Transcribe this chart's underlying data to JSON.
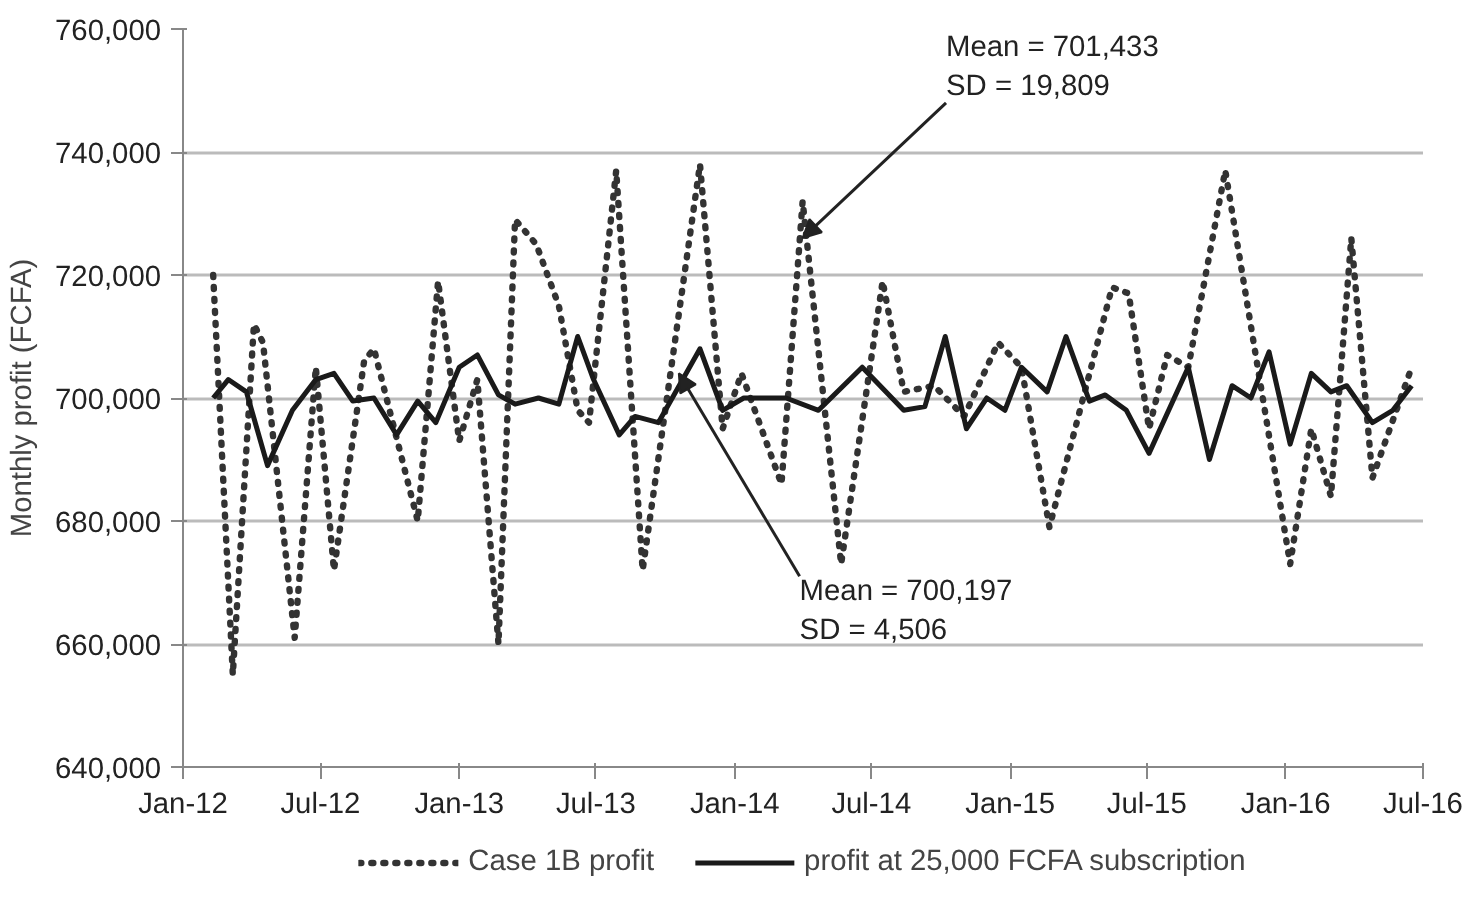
{
  "chart_data": {
    "type": "line",
    "ylabel": "Monthly profit (FCFA)",
    "xlim": [
      "2012-01",
      "2016-07"
    ],
    "xticks": [
      {
        "value": "2012-01",
        "label": "Jan-12"
      },
      {
        "value": "2012-07",
        "label": "Jul-12"
      },
      {
        "value": "2013-01",
        "label": "Jan-13"
      },
      {
        "value": "2013-07",
        "label": "Jul-13"
      },
      {
        "value": "2014-01",
        "label": "Jan-14"
      },
      {
        "value": "2014-07",
        "label": "Jul-14"
      },
      {
        "value": "2015-01",
        "label": "Jan-15"
      },
      {
        "value": "2015-07",
        "label": "Jul-15"
      },
      {
        "value": "2016-01",
        "label": "Jan-16"
      },
      {
        "value": "2016-07",
        "label": "Jul-16"
      }
    ],
    "ylim": [
      640000,
      760000
    ],
    "yticks": [
      {
        "value": 640000,
        "label": "640,000"
      },
      {
        "value": 660000,
        "label": "660,000"
      },
      {
        "value": 680000,
        "label": "680,000"
      },
      {
        "value": 700000,
        "label": "700,000"
      },
      {
        "value": 720000,
        "label": "720,000"
      },
      {
        "value": 740000,
        "label": "740,000"
      },
      {
        "value": 760000,
        "label": "760,000"
      }
    ],
    "grid": "y",
    "legend": "bottom",
    "series": [
      {
        "name": "Case 1B profit",
        "color": "#333333",
        "line_style": "dotted",
        "x": [
          "2012-02-10",
          "2012-03-07",
          "2012-04-04",
          "2012-04-16",
          "2012-05-28",
          "2012-06-25",
          "2012-07-19",
          "2012-08-28",
          "2012-09-10",
          "2012-11-07",
          "2012-12-04",
          "2013-01-01",
          "2013-01-25",
          "2013-02-22",
          "2013-03-16",
          "2013-04-13",
          "2013-05-13",
          "2013-06-07",
          "2013-06-22",
          "2013-07-28",
          "2013-09-01",
          "2013-11-16",
          "2013-12-16",
          "2014-01-10",
          "2014-03-04",
          "2014-04-01",
          "2014-05-22",
          "2014-07-16",
          "2014-08-13",
          "2014-09-22",
          "2014-11-01",
          "2014-12-16",
          "2015-01-16",
          "2015-02-22",
          "2015-05-16",
          "2015-06-07",
          "2015-07-04",
          "2015-07-28",
          "2015-08-25",
          "2015-10-13",
          "2016-01-07",
          "2016-02-04",
          "2016-03-01",
          "2016-03-28",
          "2016-04-25",
          "2016-06-16"
        ],
        "values": [
          720000,
          655000,
          712000,
          709000,
          661000,
          705000,
          672000,
          706000,
          708000,
          680000,
          719000,
          693000,
          703000,
          660000,
          729000,
          725000,
          715000,
          698000,
          696000,
          737000,
          672000,
          738000,
          695000,
          704000,
          686000,
          732000,
          673000,
          719000,
          701000,
          702000,
          697000,
          709000,
          705000,
          679000,
          718000,
          717000,
          695000,
          707000,
          705000,
          737000,
          673000,
          695000,
          684000,
          726000,
          687000,
          705000
        ]
      },
      {
        "name": "profit at 25,000 FCFA subscription",
        "color": "#1a1a1a",
        "line_style": "solid",
        "x": [
          "2012-02-10",
          "2012-03-01",
          "2012-03-25",
          "2012-04-22",
          "2012-05-25",
          "2012-06-25",
          "2012-07-19",
          "2012-08-13",
          "2012-09-10",
          "2012-10-10",
          "2012-11-07",
          "2012-12-01",
          "2013-01-01",
          "2013-01-25",
          "2013-02-22",
          "2013-03-16",
          "2013-04-16",
          "2013-05-13",
          "2013-06-07",
          "2013-06-28",
          "2013-08-01",
          "2013-08-22",
          "2013-09-22",
          "2013-11-16",
          "2013-12-16",
          "2014-01-13",
          "2014-03-10",
          "2014-04-22",
          "2014-06-19",
          "2014-08-13",
          "2014-09-10",
          "2014-10-07",
          "2014-11-04",
          "2014-12-01",
          "2014-12-25",
          "2015-01-16",
          "2015-02-19",
          "2015-03-16",
          "2015-04-16",
          "2015-05-07",
          "2015-06-04",
          "2015-07-04",
          "2015-08-25",
          "2015-09-22",
          "2015-10-22",
          "2015-11-16",
          "2015-12-10",
          "2016-01-07",
          "2016-02-04",
          "2016-03-01",
          "2016-03-22",
          "2016-04-25",
          "2016-05-22",
          "2016-06-16"
        ],
        "values": [
          700000,
          703000,
          701000,
          689000,
          698000,
          703000,
          704000,
          699500,
          700000,
          694000,
          699500,
          696000,
          705000,
          707000,
          700500,
          699000,
          700000,
          699000,
          710000,
          703000,
          694000,
          697000,
          696000,
          708000,
          698000,
          700000,
          700000,
          698000,
          705000,
          698000,
          698600,
          710000,
          695000,
          700000,
          698000,
          705000,
          701000,
          710000,
          699500,
          700500,
          698000,
          691000,
          705000,
          690000,
          702000,
          700000,
          707500,
          692500,
          704000,
          701000,
          702000,
          696000,
          698000,
          702000
        ]
      }
    ],
    "annotations": [
      {
        "text": "Mean = 701,433\nSD = 19,809",
        "x": "2014-04-01",
        "y": 726000
      },
      {
        "text": "Mean = 700,197\nSD = 4,506",
        "x": "2013-10-19",
        "y": 704000
      }
    ]
  }
}
